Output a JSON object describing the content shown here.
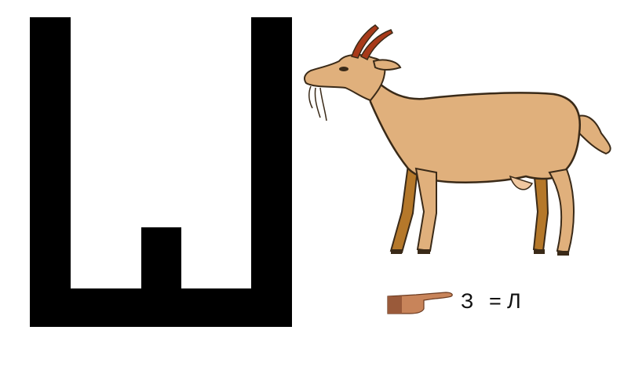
{
  "puzzle": {
    "big_letter": "Ш",
    "picture": "goat",
    "pointer_icon": "pointing-hand-icon",
    "rule": {
      "replace_letter": "З",
      "equals_sign": "=",
      "with_letter": "Л"
    }
  },
  "colors": {
    "letter": "#000000",
    "goat_body": "#e0b07c",
    "goat_legs": "#b5782a",
    "horns": "#a83a1a",
    "background": "#ffffff"
  }
}
